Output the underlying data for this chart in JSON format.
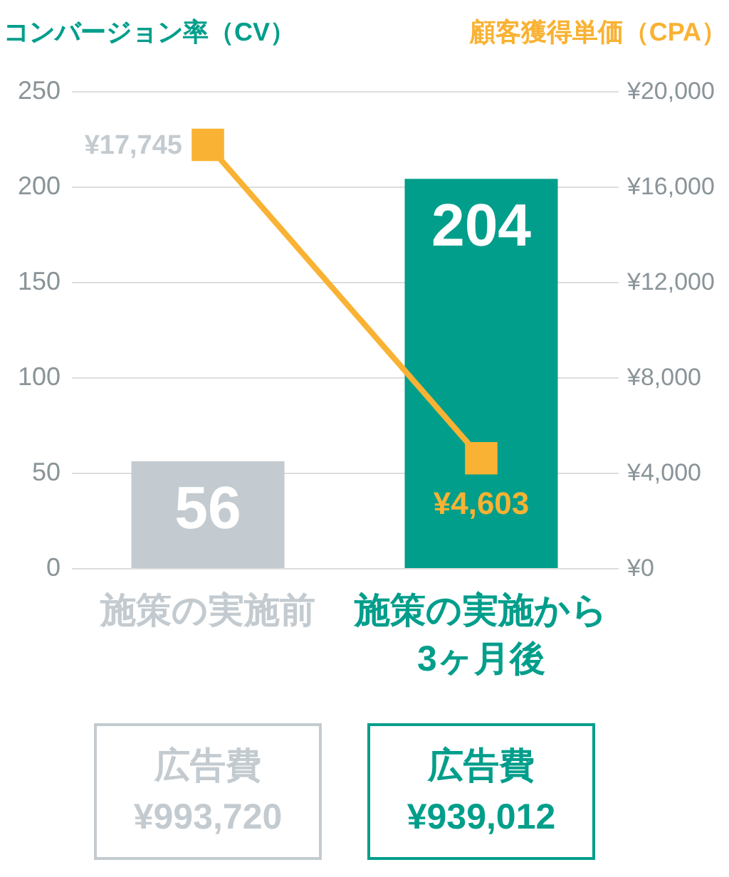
{
  "chart_data": {
    "type": "bar",
    "ylabel": "コンバージョン率（CV）",
    "y2label": "顧客獲得単価（CPA）",
    "categories": [
      "施策の実施前",
      "施策の実施から3ヶ月後"
    ],
    "values": [
      56,
      204
    ],
    "colors": [
      "#c3cbd0",
      "#009e8b"
    ],
    "data_labels": true,
    "ylim": [
      0,
      250
    ],
    "yticks": [
      0,
      50,
      100,
      150,
      200,
      250
    ],
    "y2lim": [
      0,
      20000
    ],
    "y2ticks": [
      {
        "value": 0,
        "label": "¥0"
      },
      {
        "value": 4000,
        "label": "¥4,000"
      },
      {
        "value": 8000,
        "label": "¥8,000"
      },
      {
        "value": 12000,
        "label": "¥12,000"
      },
      {
        "value": 16000,
        "label": "¥16,000"
      },
      {
        "value": 20000,
        "label": "¥20,000"
      }
    ],
    "series": [
      {
        "type": "line",
        "axis": "y2",
        "color": "#f9b233",
        "values": [
          17745,
          4603
        ],
        "value_labels": [
          "¥17,745",
          "¥4,603"
        ]
      }
    ],
    "marker": "square",
    "grid": "y",
    "annotations": [
      "広告費\n¥993,720",
      "広告費\n¥939,012"
    ]
  }
}
